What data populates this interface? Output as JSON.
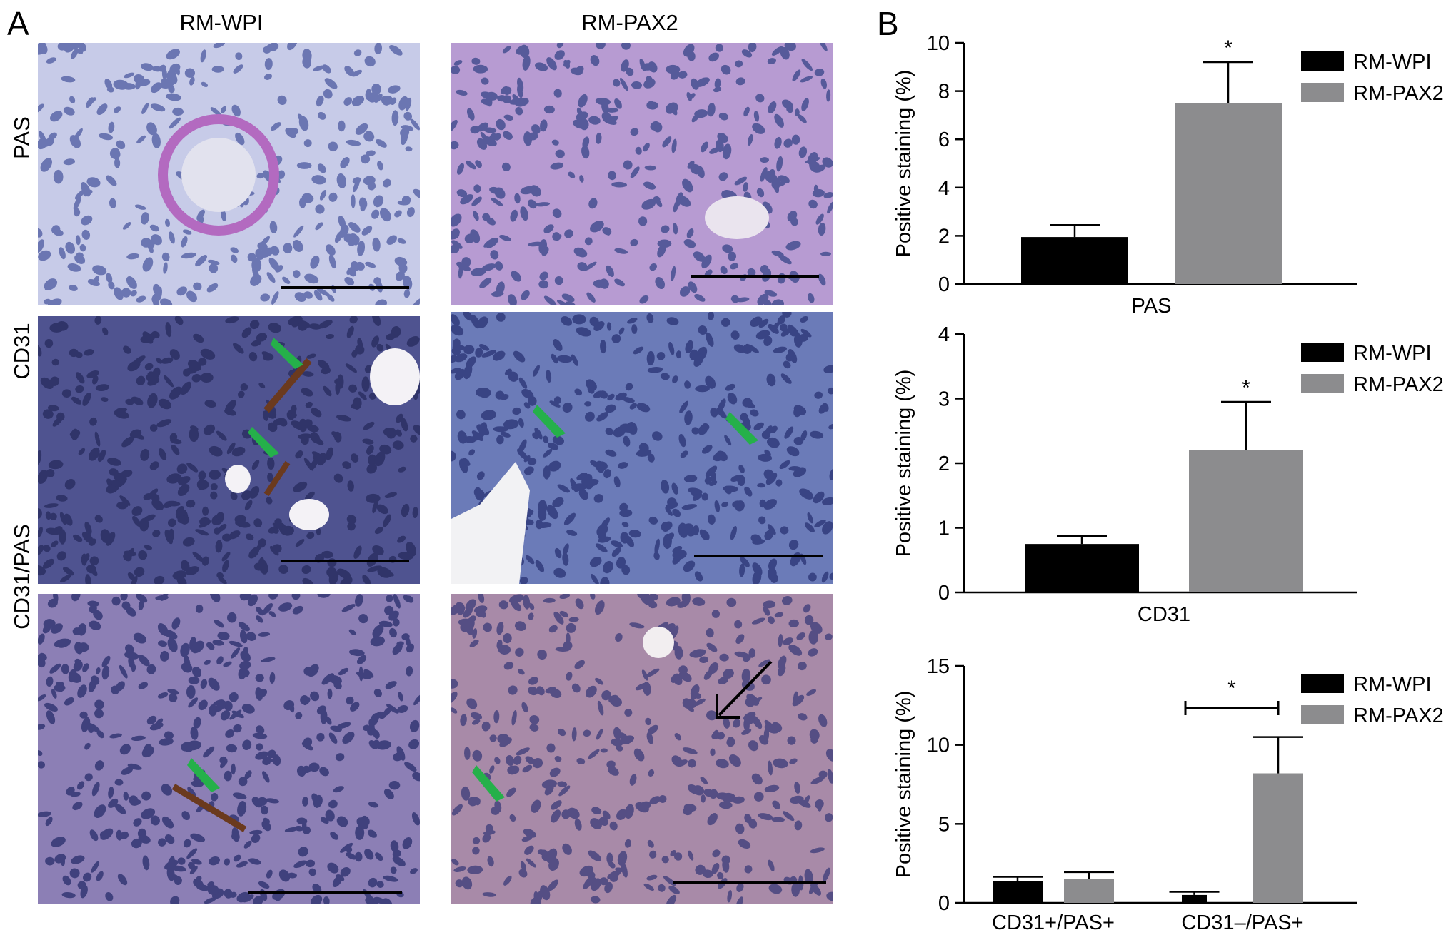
{
  "panel_a": {
    "letter": "A",
    "columns": [
      "RM-WPI",
      "RM-PAX2"
    ],
    "rows": [
      "PAS",
      "CD31",
      "CD31/PAS"
    ]
  },
  "panel_b": {
    "letter": "B"
  },
  "colors": {
    "rm_wpi": "#000000",
    "rm_pax2": "#8c8c8e",
    "pas_bg": "#c7cbe8",
    "pas_pax2_bg": "#b79bd2",
    "cd31_bg": "#4f5390",
    "cd31_pax2_bg": "#6b7bb8",
    "cd31pas_bg": "#8c7fb5",
    "cd31pas_pax2_bg": "#a88aa8",
    "green_arrow": "#25b04a",
    "scale_bar": "#000000"
  },
  "chart_data": [
    {
      "type": "bar",
      "categories": [
        "PAS"
      ],
      "xlabel": "PAS",
      "ylabel": "Positive staining (%)",
      "ylim": [
        0,
        10
      ],
      "yticks": [
        "0",
        "2",
        "4",
        "6",
        "8",
        "10"
      ],
      "series": [
        {
          "name": "RM-WPI",
          "values": [
            1.95
          ],
          "errors": [
            0.5
          ]
        },
        {
          "name": "RM-PAX2",
          "values": [
            7.5
          ],
          "errors": [
            1.7
          ]
        }
      ],
      "annotations": [
        "*"
      ],
      "legend": "top-right"
    },
    {
      "type": "bar",
      "categories": [
        "CD31"
      ],
      "xlabel": "CD31",
      "ylabel": "Positive staining (%)",
      "ylim": [
        0,
        4
      ],
      "yticks": [
        "0",
        "1",
        "2",
        "3",
        "4"
      ],
      "series": [
        {
          "name": "RM-WPI",
          "values": [
            0.75
          ],
          "errors": [
            0.12
          ]
        },
        {
          "name": "RM-PAX2",
          "values": [
            2.2
          ],
          "errors": [
            0.75
          ]
        }
      ],
      "annotations": [
        "*"
      ],
      "legend": "top-right"
    },
    {
      "type": "bar",
      "categories": [
        "CD31+/PAS+",
        "CD31–/PAS+"
      ],
      "xlabel": "",
      "ylabel": "Positive staining (%)",
      "ylim": [
        0,
        15
      ],
      "yticks": [
        "0",
        "5",
        "10",
        "15"
      ],
      "series": [
        {
          "name": "RM-WPI",
          "values": [
            1.4,
            0.5
          ],
          "errors": [
            0.25,
            0.2
          ]
        },
        {
          "name": "RM-PAX2",
          "values": [
            1.5,
            8.2
          ],
          "errors": [
            0.45,
            2.3
          ]
        }
      ],
      "annotations": [
        "*"
      ],
      "legend": "top-right"
    }
  ]
}
